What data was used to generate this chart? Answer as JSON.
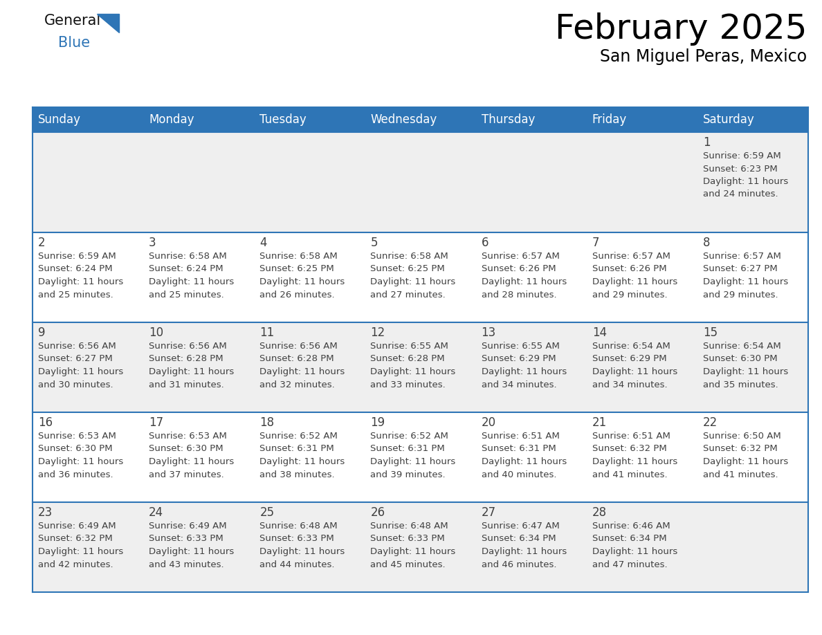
{
  "title": "February 2025",
  "subtitle": "San Miguel Peras, Mexico",
  "header_bg": "#2e75b6",
  "header_text_color": "#ffffff",
  "day_names": [
    "Sunday",
    "Monday",
    "Tuesday",
    "Wednesday",
    "Thursday",
    "Friday",
    "Saturday"
  ],
  "cell_bg_even": "#efefef",
  "cell_bg_odd": "#ffffff",
  "text_color": "#404040",
  "day_num_color": "#404040",
  "grid_color": "#2e75b6",
  "calendar": [
    [
      null,
      null,
      null,
      null,
      null,
      null,
      1
    ],
    [
      2,
      3,
      4,
      5,
      6,
      7,
      8
    ],
    [
      9,
      10,
      11,
      12,
      13,
      14,
      15
    ],
    [
      16,
      17,
      18,
      19,
      20,
      21,
      22
    ],
    [
      23,
      24,
      25,
      26,
      27,
      28,
      null
    ]
  ],
  "cell_data": {
    "1": [
      "Sunrise: 6:59 AM",
      "Sunset: 6:23 PM",
      "Daylight: 11 hours",
      "and 24 minutes."
    ],
    "2": [
      "Sunrise: 6:59 AM",
      "Sunset: 6:24 PM",
      "Daylight: 11 hours",
      "and 25 minutes."
    ],
    "3": [
      "Sunrise: 6:58 AM",
      "Sunset: 6:24 PM",
      "Daylight: 11 hours",
      "and 25 minutes."
    ],
    "4": [
      "Sunrise: 6:58 AM",
      "Sunset: 6:25 PM",
      "Daylight: 11 hours",
      "and 26 minutes."
    ],
    "5": [
      "Sunrise: 6:58 AM",
      "Sunset: 6:25 PM",
      "Daylight: 11 hours",
      "and 27 minutes."
    ],
    "6": [
      "Sunrise: 6:57 AM",
      "Sunset: 6:26 PM",
      "Daylight: 11 hours",
      "and 28 minutes."
    ],
    "7": [
      "Sunrise: 6:57 AM",
      "Sunset: 6:26 PM",
      "Daylight: 11 hours",
      "and 29 minutes."
    ],
    "8": [
      "Sunrise: 6:57 AM",
      "Sunset: 6:27 PM",
      "Daylight: 11 hours",
      "and 29 minutes."
    ],
    "9": [
      "Sunrise: 6:56 AM",
      "Sunset: 6:27 PM",
      "Daylight: 11 hours",
      "and 30 minutes."
    ],
    "10": [
      "Sunrise: 6:56 AM",
      "Sunset: 6:28 PM",
      "Daylight: 11 hours",
      "and 31 minutes."
    ],
    "11": [
      "Sunrise: 6:56 AM",
      "Sunset: 6:28 PM",
      "Daylight: 11 hours",
      "and 32 minutes."
    ],
    "12": [
      "Sunrise: 6:55 AM",
      "Sunset: 6:28 PM",
      "Daylight: 11 hours",
      "and 33 minutes."
    ],
    "13": [
      "Sunrise: 6:55 AM",
      "Sunset: 6:29 PM",
      "Daylight: 11 hours",
      "and 34 minutes."
    ],
    "14": [
      "Sunrise: 6:54 AM",
      "Sunset: 6:29 PM",
      "Daylight: 11 hours",
      "and 34 minutes."
    ],
    "15": [
      "Sunrise: 6:54 AM",
      "Sunset: 6:30 PM",
      "Daylight: 11 hours",
      "and 35 minutes."
    ],
    "16": [
      "Sunrise: 6:53 AM",
      "Sunset: 6:30 PM",
      "Daylight: 11 hours",
      "and 36 minutes."
    ],
    "17": [
      "Sunrise: 6:53 AM",
      "Sunset: 6:30 PM",
      "Daylight: 11 hours",
      "and 37 minutes."
    ],
    "18": [
      "Sunrise: 6:52 AM",
      "Sunset: 6:31 PM",
      "Daylight: 11 hours",
      "and 38 minutes."
    ],
    "19": [
      "Sunrise: 6:52 AM",
      "Sunset: 6:31 PM",
      "Daylight: 11 hours",
      "and 39 minutes."
    ],
    "20": [
      "Sunrise: 6:51 AM",
      "Sunset: 6:31 PM",
      "Daylight: 11 hours",
      "and 40 minutes."
    ],
    "21": [
      "Sunrise: 6:51 AM",
      "Sunset: 6:32 PM",
      "Daylight: 11 hours",
      "and 41 minutes."
    ],
    "22": [
      "Sunrise: 6:50 AM",
      "Sunset: 6:32 PM",
      "Daylight: 11 hours",
      "and 41 minutes."
    ],
    "23": [
      "Sunrise: 6:49 AM",
      "Sunset: 6:32 PM",
      "Daylight: 11 hours",
      "and 42 minutes."
    ],
    "24": [
      "Sunrise: 6:49 AM",
      "Sunset: 6:33 PM",
      "Daylight: 11 hours",
      "and 43 minutes."
    ],
    "25": [
      "Sunrise: 6:48 AM",
      "Sunset: 6:33 PM",
      "Daylight: 11 hours",
      "and 44 minutes."
    ],
    "26": [
      "Sunrise: 6:48 AM",
      "Sunset: 6:33 PM",
      "Daylight: 11 hours",
      "and 45 minutes."
    ],
    "27": [
      "Sunrise: 6:47 AM",
      "Sunset: 6:34 PM",
      "Daylight: 11 hours",
      "and 46 minutes."
    ],
    "28": [
      "Sunrise: 6:46 AM",
      "Sunset: 6:34 PM",
      "Daylight: 11 hours",
      "and 47 minutes."
    ]
  }
}
